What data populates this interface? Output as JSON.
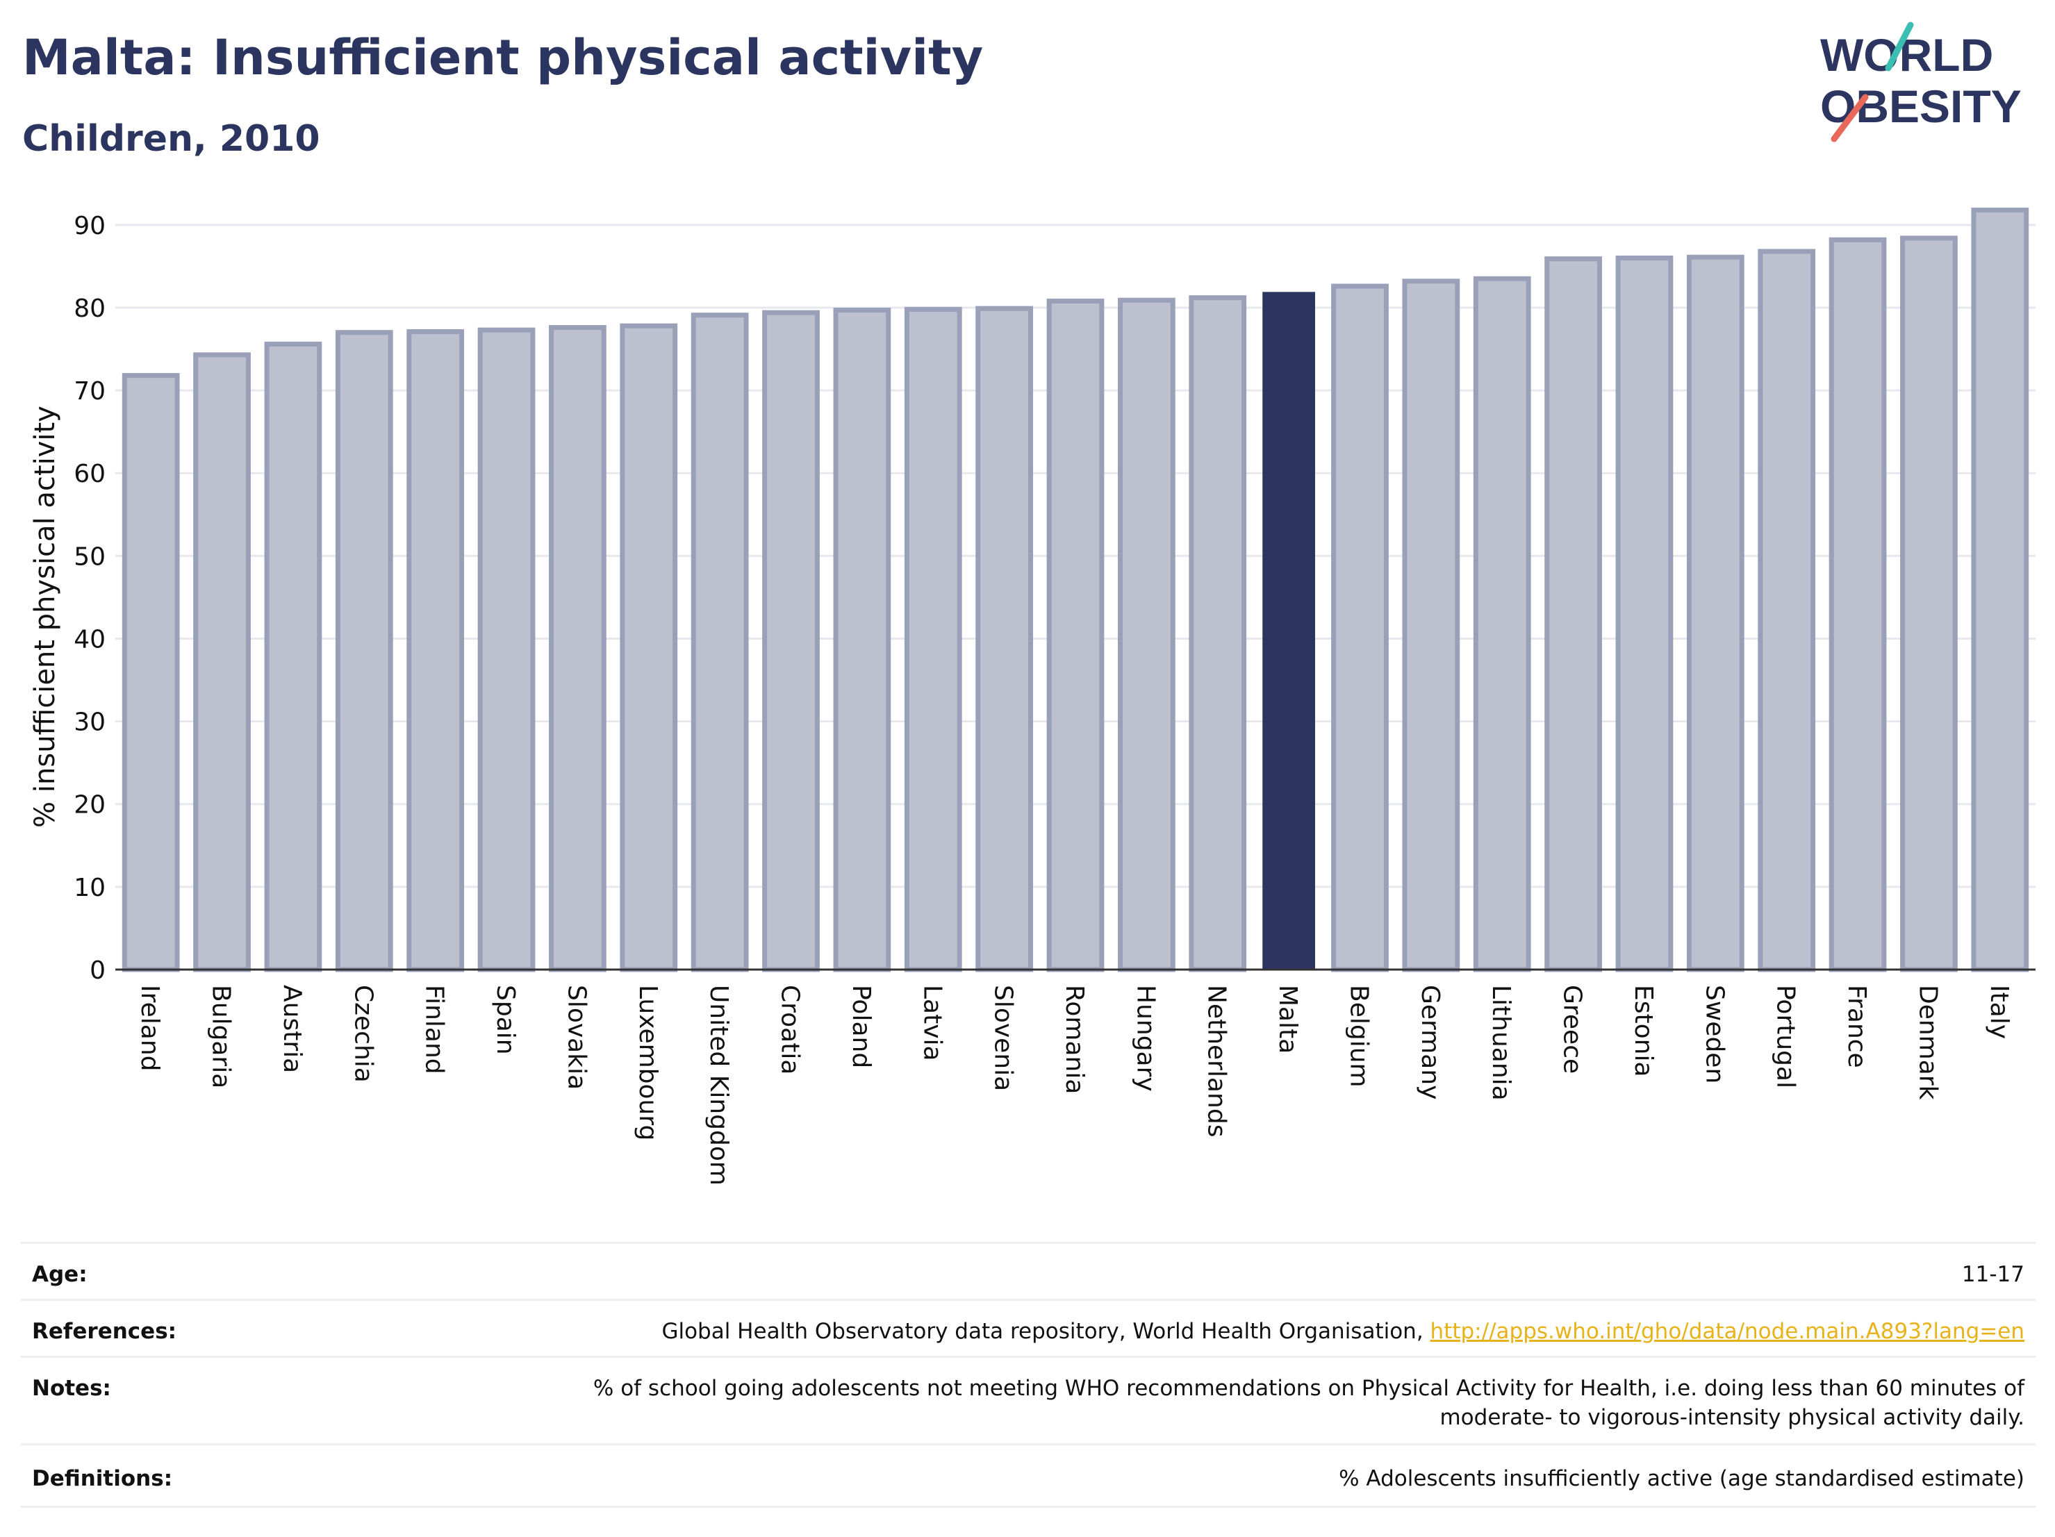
{
  "title": "Malta: Insufficient physical activity",
  "subtitle": "Children, 2010",
  "logo": {
    "line1": "WORLD",
    "line2": "OBESITY",
    "accent_teal": "#3bbfb3",
    "accent_red": "#e8685a"
  },
  "colors": {
    "highlight": "#2b355f",
    "bar": "#bdc0ce",
    "bar_border": "#9aa0b8",
    "grid": "#e6e8ee",
    "axis": "#333333",
    "link": "#e8b21a"
  },
  "chart_data": {
    "type": "bar",
    "ylabel": "% insufficient physical activity",
    "xlabel": "",
    "ylim": [
      0,
      92
    ],
    "yticks": [
      0,
      10,
      20,
      30,
      40,
      50,
      60,
      70,
      80,
      90
    ],
    "grid": true,
    "highlight": "Malta",
    "categories": [
      "Ireland",
      "Bulgaria",
      "Austria",
      "Czechia",
      "Finland",
      "Spain",
      "Slovakia",
      "Luxembourg",
      "United Kingdom",
      "Croatia",
      "Poland",
      "Latvia",
      "Slovenia",
      "Romania",
      "Hungary",
      "Netherlands",
      "Malta",
      "Belgium",
      "Germany",
      "Lithuania",
      "Greece",
      "Estonia",
      "Sweden",
      "Portugal",
      "France",
      "Denmark",
      "Italy"
    ],
    "values": [
      71.8,
      74.3,
      75.6,
      77.0,
      77.1,
      77.3,
      77.6,
      77.8,
      79.1,
      79.4,
      79.7,
      79.8,
      79.9,
      80.8,
      80.9,
      81.2,
      81.9,
      82.6,
      83.2,
      83.5,
      85.9,
      86.0,
      86.1,
      86.8,
      88.2,
      88.4,
      91.8
    ]
  },
  "meta": {
    "age_label": "Age:",
    "age_value": "11-17",
    "references_label": "References:",
    "references_text": "Global Health Observatory data repository, World Health Organisation, ",
    "references_link": "http://apps.who.int/gho/data/node.main.A893?lang=en",
    "notes_label": "Notes:",
    "notes_line1": "% of school going adolescents not meeting WHO recommendations on Physical Activity for Health, i.e. doing less than 60 minutes of",
    "notes_line2": "moderate- to vigorous-intensity physical activity daily.",
    "definitions_label": "Definitions:",
    "definitions_value": "% Adolescents insufficiently active (age standardised estimate)"
  }
}
